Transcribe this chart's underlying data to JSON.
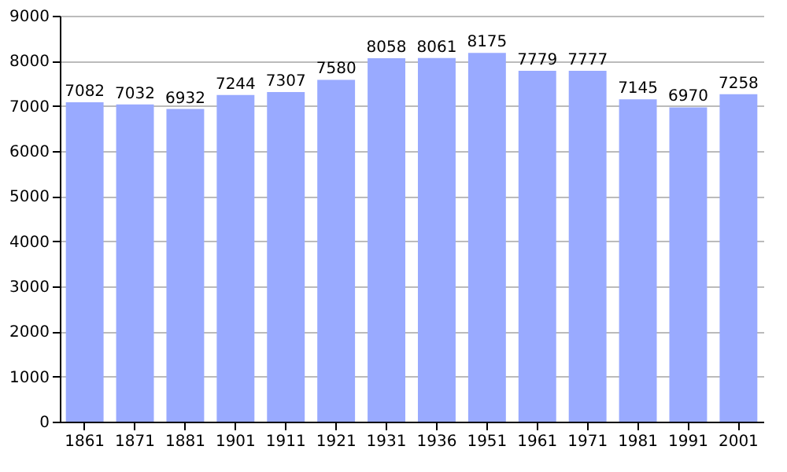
{
  "chart_data": {
    "type": "bar",
    "categories": [
      "1861",
      "1871",
      "1881",
      "1901",
      "1911",
      "1921",
      "1931",
      "1936",
      "1951",
      "1961",
      "1971",
      "1981",
      "1991",
      "2001"
    ],
    "values": [
      7082,
      7032,
      6932,
      7244,
      7307,
      7580,
      8058,
      8061,
      8175,
      7779,
      7777,
      7145,
      6970,
      7258
    ],
    "color": "#99aaff",
    "ylim": [
      0,
      9000
    ],
    "yticks": [
      0,
      1000,
      2000,
      3000,
      4000,
      5000,
      6000,
      7000,
      8000,
      9000
    ],
    "grid": "y",
    "data_labels": true
  }
}
